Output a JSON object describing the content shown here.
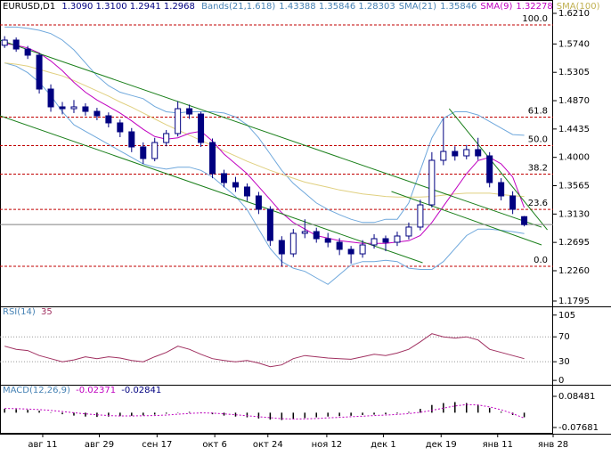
{
  "chart_data": [
    {
      "type": "candlestick",
      "title": "EURUSD,D1",
      "ohlc_label": "1.3090 1.3100 1.2941 1.2968",
      "indicator_labels": [
        {
          "text": "Bands(21,1.618)",
          "color": "#4682b4"
        },
        {
          "text": "1.43388 1.35846 1.28303",
          "color": "#4682b4"
        },
        {
          "text": "SMA(21)",
          "color": "#4682b4"
        },
        {
          "text": "1.35846",
          "color": "#4682b4"
        },
        {
          "text": "SMA(9)",
          "color": "#c000c0"
        },
        {
          "text": "1.32278",
          "color": "#c000c0"
        },
        {
          "text": "SMA(100)",
          "color": "#c0b050"
        }
      ],
      "categories": [
        null,
        null,
        null,
        null,
        null,
        null,
        null,
        null,
        null,
        null,
        null,
        null,
        null,
        null,
        null,
        null,
        null,
        null,
        null,
        null,
        null,
        null,
        null,
        null,
        null,
        null,
        null,
        null,
        null,
        null,
        null,
        null,
        null,
        null,
        null,
        null,
        null,
        null,
        null,
        null,
        null,
        null,
        null,
        null,
        null,
        null
      ],
      "open": [
        1.572,
        1.58,
        1.5663,
        1.5568,
        1.5048,
        1.4775,
        1.4747,
        1.4775,
        1.4706,
        1.4638,
        1.4529,
        1.4392,
        1.416,
        1.3982,
        1.4228,
        1.4365,
        1.4747,
        1.4665,
        1.4228,
        1.375,
        1.3613,
        1.3545,
        1.3408,
        1.3203,
        1.2724,
        1.2519,
        1.2834,
        1.2861,
        1.2752,
        1.2697,
        1.2588,
        1.2519,
        1.2656,
        1.2752,
        1.2697,
        1.2793,
        1.293,
        1.3271,
        1.3955,
        1.4091,
        1.4023,
        1.4119,
        1.4023,
        1.3613,
        1.3408,
        1.309
      ],
      "high": [
        1.586,
        1.584,
        1.571,
        1.56,
        1.512,
        1.485,
        1.488,
        1.483,
        1.476,
        1.469,
        1.458,
        1.445,
        1.423,
        1.43,
        1.442,
        1.486,
        1.481,
        1.47,
        1.429,
        1.381,
        1.37,
        1.36,
        1.347,
        1.325,
        1.279,
        1.29,
        1.305,
        1.292,
        1.284,
        1.276,
        1.264,
        1.273,
        1.282,
        1.28,
        1.286,
        1.3,
        1.335,
        1.408,
        1.46,
        1.417,
        1.419,
        1.43,
        1.408,
        1.368,
        1.348,
        1.31
      ],
      "low": [
        1.568,
        1.562,
        1.551,
        1.498,
        1.47,
        1.466,
        1.468,
        1.464,
        1.457,
        1.446,
        1.431,
        1.408,
        1.39,
        1.394,
        1.417,
        1.432,
        1.459,
        1.416,
        1.368,
        1.354,
        1.347,
        1.333,
        1.313,
        1.264,
        1.233,
        1.247,
        1.276,
        1.269,
        1.262,
        1.25,
        1.237,
        1.246,
        1.26,
        1.256,
        1.264,
        1.274,
        1.288,
        1.323,
        1.388,
        1.395,
        1.397,
        1.396,
        1.354,
        1.334,
        1.313,
        1.2941
      ],
      "close": [
        1.58,
        1.5663,
        1.5568,
        1.5048,
        1.4775,
        1.4747,
        1.4775,
        1.4706,
        1.4638,
        1.4529,
        1.4392,
        1.416,
        1.3982,
        1.4228,
        1.4365,
        1.4747,
        1.4665,
        1.4228,
        1.375,
        1.3613,
        1.3545,
        1.3408,
        1.3203,
        1.2724,
        1.2519,
        1.2834,
        1.2861,
        1.2752,
        1.2697,
        1.2588,
        1.2519,
        1.2656,
        1.2752,
        1.2697,
        1.2793,
        1.293,
        1.3271,
        1.3955,
        1.4091,
        1.4023,
        1.4119,
        1.4023,
        1.3613,
        1.3408,
        1.3203,
        1.2968
      ],
      "up_color": "#ffffff",
      "down_color": "#000080",
      "edge_color": "#000080",
      "series": [
        {
          "color": "#6fa8dc",
          "values": [
            1.6,
            1.6,
            1.598,
            1.595,
            1.59,
            1.58,
            1.565,
            1.545,
            1.525,
            1.51,
            1.5,
            1.495,
            1.49,
            1.478,
            1.47,
            1.468,
            1.47,
            1.47,
            1.47,
            1.468,
            1.462,
            1.45,
            1.43,
            1.405,
            1.38,
            1.36,
            1.345,
            1.33,
            1.32,
            1.312,
            1.305,
            1.3,
            1.3,
            1.305,
            1.305,
            1.33,
            1.38,
            1.43,
            1.46,
            1.47,
            1.47,
            1.465,
            1.455,
            1.445,
            1.435,
            1.43388
          ]
        },
        {
          "color": "#6fa8dc",
          "values": [
            1.545,
            1.54,
            1.53,
            1.515,
            1.495,
            1.47,
            1.45,
            1.44,
            1.43,
            1.42,
            1.41,
            1.4,
            1.39,
            1.385,
            1.382,
            1.385,
            1.385,
            1.38,
            1.37,
            1.355,
            1.34,
            1.32,
            1.29,
            1.26,
            1.24,
            1.23,
            1.225,
            1.215,
            1.205,
            1.22,
            1.235,
            1.24,
            1.24,
            1.242,
            1.24,
            1.23,
            1.228,
            1.228,
            1.24,
            1.26,
            1.28,
            1.29,
            1.29,
            1.288,
            1.286,
            1.28303
          ]
        },
        {
          "color": "#e0d080",
          "values": [
            1.545,
            1.543,
            1.54,
            1.535,
            1.53,
            1.525,
            1.518,
            1.51,
            1.502,
            1.494,
            1.485,
            1.477,
            1.468,
            1.459,
            1.45,
            1.442,
            1.434,
            1.426,
            1.418,
            1.41,
            1.402,
            1.394,
            1.387,
            1.38,
            1.374,
            1.368,
            1.362,
            1.358,
            1.354,
            1.35,
            1.347,
            1.344,
            1.342,
            1.34,
            1.339,
            1.339,
            1.339,
            1.34,
            1.342,
            1.344,
            1.345,
            1.345,
            1.345,
            1.343,
            1.341,
            1.34
          ]
        },
        {
          "color": "#c000c0",
          "values": [
            1.575,
            1.572,
            1.568,
            1.56,
            1.548,
            1.533,
            1.515,
            1.5,
            1.488,
            1.478,
            1.468,
            1.456,
            1.443,
            1.432,
            1.428,
            1.43,
            1.437,
            1.44,
            1.425,
            1.405,
            1.39,
            1.375,
            1.355,
            1.335,
            1.315,
            1.3,
            1.29,
            1.28,
            1.276,
            1.272,
            1.27,
            1.268,
            1.268,
            1.268,
            1.27,
            1.272,
            1.28,
            1.3,
            1.325,
            1.35,
            1.375,
            1.395,
            1.4,
            1.39,
            1.37,
            1.32278
          ]
        }
      ],
      "trendlines": [
        {
          "color": "#1a7f1a",
          "x": [
            -0.4,
            46.5
          ],
          "y": [
            1.58,
            1.2929
          ]
        },
        {
          "color": "#1a7f1a",
          "x": [
            -0.4,
            36.2
          ],
          "y": [
            1.4638,
            1.2383
          ]
        },
        {
          "color": "#1a7f1a",
          "x": [
            38.5,
            47.0
          ],
          "y": [
            1.4747,
            1.2888
          ]
        },
        {
          "color": "#1a7f1a",
          "x": [
            33.5,
            46.5
          ],
          "y": [
            1.3476,
            1.2656
          ]
        }
      ],
      "fib_color": "#c00000",
      "fib_levels": [
        {
          "label": "100.0",
          "value": 1.6032
        },
        {
          "label": "61.8",
          "value": 1.4617
        },
        {
          "label": "50.0",
          "value": 1.418
        },
        {
          "label": "38.2",
          "value": 1.3743
        },
        {
          "label": "23.6",
          "value": 1.3202
        },
        {
          "label": "0.0",
          "value": 1.2328
        }
      ],
      "ylim": [
        1.1713,
        1.6415
      ],
      "yticks": [
        {
          "value": 1.621,
          "label": "1.6210"
        },
        {
          "value": 1.574,
          "label": "1.5740"
        },
        {
          "value": 1.5305,
          "label": "1.5305"
        },
        {
          "value": 1.487,
          "label": "1.4870"
        },
        {
          "value": 1.4435,
          "label": "1.4435"
        },
        {
          "value": 1.4,
          "label": "1.4000"
        },
        {
          "value": 1.3565,
          "label": "1.3565"
        },
        {
          "value": 1.313,
          "label": "1.3130"
        },
        {
          "value": 1.2695,
          "label": "1.2695"
        },
        {
          "value": 1.226,
          "label": "1.2260"
        },
        {
          "value": 1.1795,
          "label": "1.1795"
        }
      ],
      "xlim": [
        -0.4,
        47.5
      ],
      "xticks": [
        {
          "value": 3.3,
          "label": "авг 11"
        },
        {
          "value": 8.2,
          "label": "авг 29"
        },
        {
          "value": 13.2,
          "label": "сен 17"
        },
        {
          "value": 18.2,
          "label": "окт 6"
        },
        {
          "value": 22.8,
          "label": "окт 24"
        },
        {
          "value": 27.9,
          "label": "ноя 12"
        },
        {
          "value": 32.8,
          "label": "дек 1"
        },
        {
          "value": 37.8,
          "label": "дек 19"
        },
        {
          "value": 42.7,
          "label": "янв 11"
        },
        {
          "value": 47.5,
          "label": "янв 28"
        }
      ]
    },
    {
      "type": "line",
      "title": "RSI(14)",
      "title_value": "35",
      "color": "#a03060",
      "values": [
        55,
        50,
        48,
        40,
        35,
        30,
        33,
        38,
        35,
        38,
        36,
        32,
        30,
        38,
        45,
        55,
        50,
        42,
        35,
        32,
        30,
        32,
        28,
        22,
        25,
        35,
        40,
        38,
        36,
        35,
        34,
        38,
        42,
        40,
        44,
        50,
        62,
        75,
        70,
        68,
        70,
        65,
        50,
        45,
        40,
        35
      ],
      "levels": [
        30,
        70
      ],
      "ylim": [
        -7,
        119
      ],
      "yticks": [
        0,
        30,
        70,
        105
      ]
    },
    {
      "type": "macd",
      "title": "MACD(12,26,9)",
      "main_label": "-0.02371",
      "signal_label": "-0.02841",
      "color": "#000000",
      "signal_color": "#c000c0",
      "values": [
        0.02,
        0.018,
        0.015,
        0.01,
        0.002,
        -0.008,
        -0.015,
        -0.02,
        -0.022,
        -0.02,
        -0.018,
        -0.016,
        -0.014,
        -0.01,
        -0.005,
        0.002,
        0.004,
        0.002,
        -0.008,
        -0.015,
        -0.02,
        -0.024,
        -0.03,
        -0.036,
        -0.038,
        -0.034,
        -0.028,
        -0.024,
        -0.02,
        -0.018,
        -0.016,
        -0.012,
        -0.01,
        -0.008,
        -0.004,
        0.004,
        0.02,
        0.04,
        0.05,
        0.055,
        0.05,
        0.042,
        0.025,
        0.005,
        -0.012,
        -0.02371
      ],
      "signal": [
        0.022,
        0.021,
        0.019,
        0.016,
        0.012,
        0.006,
        0.0,
        -0.006,
        -0.011,
        -0.015,
        -0.017,
        -0.017,
        -0.016,
        -0.015,
        -0.012,
        -0.008,
        -0.004,
        -0.001,
        -0.002,
        -0.006,
        -0.011,
        -0.016,
        -0.021,
        -0.026,
        -0.031,
        -0.033,
        -0.032,
        -0.03,
        -0.027,
        -0.024,
        -0.021,
        -0.018,
        -0.015,
        -0.012,
        -0.009,
        -0.005,
        0.002,
        0.012,
        0.024,
        0.035,
        0.042,
        0.04,
        0.03,
        0.015,
        -0.005,
        -0.02841
      ],
      "ylim": [
        -0.1091,
        0.1448
      ],
      "yticks": [
        0.08481,
        -0.07681
      ]
    }
  ]
}
